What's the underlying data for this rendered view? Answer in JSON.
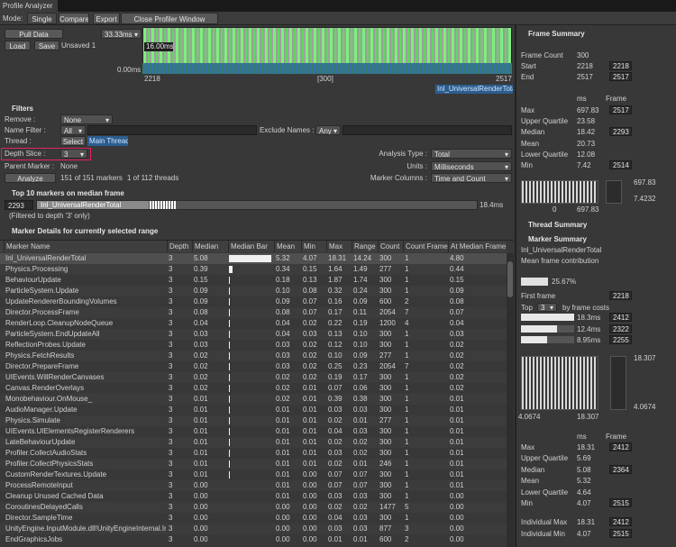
{
  "window": {
    "title": "Profile Analyzer"
  },
  "toolbar": {
    "mode_label": "Mode:",
    "tabs": [
      "Single",
      "Compare",
      "Export",
      "Close Profiler Window"
    ]
  },
  "frame_control": {
    "pull_data": "Pull Data",
    "frame_time": "33.33ms",
    "load": "Load",
    "save": "Save",
    "status": "Unsaved 1",
    "graph_max": "16.00ms",
    "graph_min": "0.00ms",
    "start": "2218",
    "range": "[300]",
    "end": "2517",
    "marker": "Inl_UniversalRenderTotal"
  },
  "filters": {
    "title": "Filters",
    "remove_label": "Remove :",
    "remove": "None",
    "name_filter_label": "Name Filter :",
    "name_filter": "All",
    "exclude_label": "Exclude Names :",
    "exclude": "Any",
    "thread_label": "Thread :",
    "thread_button": "Select",
    "thread": "Main Thread",
    "depth_label": "Depth Slice :",
    "depth": "3",
    "parent_label": "Parent Marker :",
    "parent": "None",
    "analyze": "Analyze",
    "markers": "151 of 151 markers",
    "threads": "1 of 112 threads",
    "analysis_type_label": "Analysis Type :",
    "analysis_type": "Total",
    "units_label": "Units :",
    "units": "Milliseconds",
    "columns_label": "Marker Columns :",
    "columns": "Time and Count"
  },
  "top_markers": {
    "title": "Top 10 markers on median frame",
    "frame": "2293",
    "marker": "Inl_UniversalRenderTotal",
    "time": "18.4ms",
    "note": "(Filtered to depth '3' only)"
  },
  "marker_details": {
    "title": "Marker Details for currently selected range",
    "columns": [
      "Marker Name",
      "Depth",
      "Median",
      "Median Bar",
      "Mean",
      "Min",
      "Max",
      "Range",
      "Count",
      "Count Frame",
      "At Median Frame"
    ],
    "rows": [
      [
        "Inl_UniversalRenderTotal",
        "3",
        "5.08",
        "5.32",
        "4.07",
        "18.31",
        "14.24",
        "300",
        "1",
        "4.80"
      ],
      [
        "Physics.Processing",
        "3",
        "0.39",
        "0.34",
        "0.15",
        "1.64",
        "1.49",
        "277",
        "1",
        "0.44"
      ],
      [
        "BehaviourUpdate",
        "3",
        "0.15",
        "0.18",
        "0.13",
        "1.87",
        "1.74",
        "300",
        "1",
        "0.15"
      ],
      [
        "ParticleSystem.Update",
        "3",
        "0.09",
        "0.10",
        "0.08",
        "0.32",
        "0.24",
        "300",
        "1",
        "0.09"
      ],
      [
        "UpdateRendererBoundingVolumes",
        "3",
        "0.09",
        "0.09",
        "0.07",
        "0.16",
        "0.09",
        "600",
        "2",
        "0.08"
      ],
      [
        "Director.ProcessFrame",
        "3",
        "0.08",
        "0.08",
        "0.07",
        "0.17",
        "0.11",
        "2054",
        "7",
        "0.07"
      ],
      [
        "RenderLoop.CleanupNodeQueue",
        "3",
        "0.04",
        "0.04",
        "0.02",
        "0.22",
        "0.19",
        "1200",
        "4",
        "0.04"
      ],
      [
        "ParticleSystem.EndUpdateAll",
        "3",
        "0.03",
        "0.04",
        "0.03",
        "0.13",
        "0.10",
        "300",
        "1",
        "0.03"
      ],
      [
        "ReflectionProbes.Update",
        "3",
        "0.03",
        "0.03",
        "0.02",
        "0.12",
        "0.10",
        "300",
        "1",
        "0.02"
      ],
      [
        "Physics.FetchResults",
        "3",
        "0.02",
        "0.03",
        "0.02",
        "0.10",
        "0.09",
        "277",
        "1",
        "0.02"
      ],
      [
        "Director.PrepareFrame",
        "3",
        "0.02",
        "0.03",
        "0.02",
        "0.25",
        "0.23",
        "2054",
        "7",
        "0.02"
      ],
      [
        "UIEvents.WillRenderCanvases",
        "3",
        "0.02",
        "0.02",
        "0.02",
        "0.19",
        "0.17",
        "300",
        "1",
        "0.02"
      ],
      [
        "Canvas.RenderOverlays",
        "3",
        "0.02",
        "0.02",
        "0.01",
        "0.07",
        "0.06",
        "300",
        "1",
        "0.02"
      ],
      [
        "Monobehaviour.OnMouse_",
        "3",
        "0.01",
        "0.02",
        "0.01",
        "0.39",
        "0.38",
        "300",
        "1",
        "0.01"
      ],
      [
        "AudioManager.Update",
        "3",
        "0.01",
        "0.01",
        "0.01",
        "0.03",
        "0.03",
        "300",
        "1",
        "0.01"
      ],
      [
        "Physics.Simulate",
        "3",
        "0.01",
        "0.01",
        "0.01",
        "0.02",
        "0.01",
        "277",
        "1",
        "0.01"
      ],
      [
        "UIEvents.UIElementsRegisterRenderers",
        "3",
        "0.01",
        "0.01",
        "0.01",
        "0.04",
        "0.03",
        "300",
        "1",
        "0.01"
      ],
      [
        "LateBehaviourUpdate",
        "3",
        "0.01",
        "0.01",
        "0.01",
        "0.02",
        "0.02",
        "300",
        "1",
        "0.01"
      ],
      [
        "Profiler.CollectAudioStats",
        "3",
        "0.01",
        "0.01",
        "0.01",
        "0.03",
        "0.02",
        "300",
        "1",
        "0.01"
      ],
      [
        "Profiler.CollectPhysicsStats",
        "3",
        "0.01",
        "0.01",
        "0.01",
        "0.02",
        "0.01",
        "246",
        "1",
        "0.01"
      ],
      [
        "CustomRenderTextures.Update",
        "3",
        "0.01",
        "0.01",
        "0.00",
        "0.07",
        "0.07",
        "300",
        "1",
        "0.01"
      ],
      [
        "ProcessRemoteInput",
        "3",
        "0.00",
        "0.01",
        "0.00",
        "0.07",
        "0.07",
        "300",
        "1",
        "0.01"
      ],
      [
        "Cleanup Unused Cached Data",
        "3",
        "0.00",
        "0.01",
        "0.00",
        "0.03",
        "0.03",
        "300",
        "1",
        "0.00"
      ],
      [
        "CoroutinesDelayedCalls",
        "3",
        "0.00",
        "0.00",
        "0.00",
        "0.02",
        "0.02",
        "1477",
        "5",
        "0.00"
      ],
      [
        "Director.SampleTime",
        "3",
        "0.00",
        "0.00",
        "0.00",
        "0.04",
        "0.03",
        "300",
        "1",
        "0.00"
      ],
      [
        "UnityEngine.InputModule.dll!UnityEngineInternal.Inpu",
        "3",
        "0.00",
        "0.00",
        "0.00",
        "0.03",
        "0.03",
        "877",
        "3",
        "0.00"
      ],
      [
        "EndGraphicsJobs",
        "3",
        "0.00",
        "0.00",
        "0.00",
        "0.01",
        "0.01",
        "600",
        "2",
        "0.00"
      ]
    ]
  },
  "frame_summary": {
    "title": "Frame Summary",
    "frame_count_label": "Frame Count",
    "frame_count": 300,
    "start_label": "Start",
    "start": 2218,
    "start_frame": 2218,
    "end_label": "End",
    "end": 2517,
    "end_frame": 2517,
    "ms_header": "ms",
    "frame_header": "Frame",
    "stats": [
      {
        "label": "Max",
        "ms": 697.83,
        "frame": 2517
      },
      {
        "label": "Upper Quartile",
        "ms": 23.58
      },
      {
        "label": "Median",
        "ms": 18.42,
        "frame": 2293
      },
      {
        "label": "Mean",
        "ms": 20.73
      },
      {
        "label": "Lower Quartile",
        "ms": 12.08
      },
      {
        "label": "Min",
        "ms": 7.42,
        "frame": 2514
      }
    ],
    "hist_min": 0,
    "hist_max": 697.83,
    "box_max": 697.83,
    "box_min": 7.4232
  },
  "thread_summary": {
    "title": "Thread Summary"
  },
  "marker_summary": {
    "title": "Marker Summary",
    "marker": "Inl_UniversalRenderTotal",
    "contribution_label": "Mean frame contribution",
    "contribution": {
      "value": 25.67,
      "label": "25.67%"
    },
    "first_frame_label": "First frame",
    "first_frame": 2218,
    "top_label": "Top",
    "top_count": "3",
    "top_suffix": "by frame costs",
    "top_frames": [
      {
        "ms": {
          "value": 18.3,
          "label": "18.3ms"
        },
        "frame": 2412
      },
      {
        "ms": {
          "value": 12.4,
          "label": "12.4ms"
        },
        "frame": 2322
      },
      {
        "ms": {
          "value": 8.95,
          "label": "8.95ms"
        },
        "frame": 2255
      }
    ],
    "hist_min": 4.0674,
    "hist_max": 18.307,
    "box_max": 18.307,
    "box_min": 4.0674,
    "ms_header": "ms",
    "frame_header": "Frame",
    "stats": [
      {
        "label": "Max",
        "ms": 18.31,
        "frame": 2412
      },
      {
        "label": "Upper Quartile",
        "ms": 5.69
      },
      {
        "label": "Median",
        "ms": 5.08,
        "frame": 2364
      },
      {
        "label": "Mean",
        "ms": 5.32
      },
      {
        "label": "Lower Quartile",
        "ms": 4.64
      },
      {
        "label": "Min",
        "ms": 4.07,
        "frame": 2515
      }
    ],
    "individual": [
      {
        "label": "Individual Max",
        "ms": 18.31,
        "frame": 2412
      },
      {
        "label": "Individual Min",
        "ms": 4.07,
        "frame": 2515
      }
    ]
  }
}
